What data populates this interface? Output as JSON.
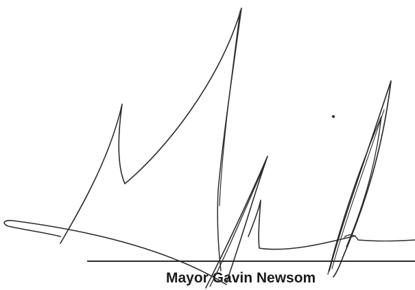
{
  "signature_block": {
    "signer_name": "Mayor Gavin Newsom"
  },
  "signature": {
    "kind": "handwritten-signature",
    "ink_color": "#2b2b2b"
  },
  "colors": {
    "background": "#ffffff",
    "line": "#2a2a2a",
    "text": "#1a1a1a"
  }
}
